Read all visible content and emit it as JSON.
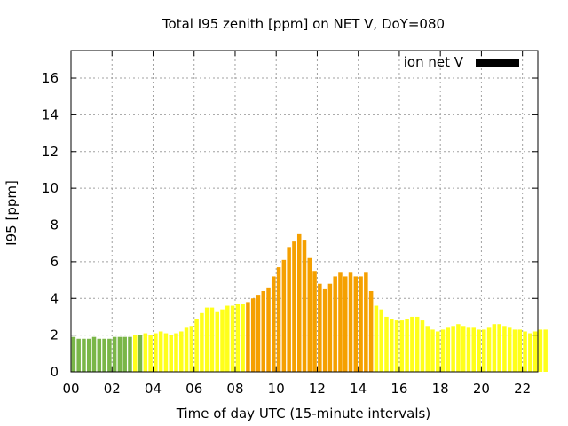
{
  "chart_data": {
    "type": "bar",
    "title": "Total I95 zenith [ppm] on NET V, DoY=080",
    "xlabel": "Time of day UTC (15-minute intervals)",
    "ylabel": "I95 [ppm]",
    "legend": {
      "label": "ion net V",
      "color": "#000000",
      "placement": "top-right"
    },
    "grid": true,
    "xlim": [
      0,
      22.75
    ],
    "ylim": [
      0,
      17.5
    ],
    "x_ticks": [
      {
        "value": 0,
        "label": "00"
      },
      {
        "value": 2,
        "label": "02"
      },
      {
        "value": 4,
        "label": "04"
      },
      {
        "value": 6,
        "label": "06"
      },
      {
        "value": 8,
        "label": "08"
      },
      {
        "value": 10,
        "label": "10"
      },
      {
        "value": 12,
        "label": "12"
      },
      {
        "value": 14,
        "label": "14"
      },
      {
        "value": 16,
        "label": "16"
      },
      {
        "value": 18,
        "label": "18"
      },
      {
        "value": 20,
        "label": "20"
      },
      {
        "value": 22,
        "label": "22"
      }
    ],
    "y_ticks": [
      {
        "value": 0,
        "label": "0"
      },
      {
        "value": 2,
        "label": "2"
      },
      {
        "value": 4,
        "label": "4"
      },
      {
        "value": 6,
        "label": "6"
      },
      {
        "value": 8,
        "label": "8"
      },
      {
        "value": 10,
        "label": "10"
      },
      {
        "value": 12,
        "label": "12"
      },
      {
        "value": 14,
        "label": "14"
      },
      {
        "value": 16,
        "label": "16"
      }
    ],
    "interval_hours": 0.25,
    "bar_color_scale": {
      "low": "#7ab648",
      "moderate": "#ffff1a",
      "elevated": "#f5a000"
    },
    "values": [
      1.9,
      1.8,
      1.8,
      1.8,
      1.9,
      1.8,
      1.8,
      1.8,
      1.9,
      1.9,
      1.9,
      1.9,
      2.0,
      2.0,
      2.1,
      2.0,
      2.1,
      2.2,
      2.1,
      2.0,
      2.1,
      2.2,
      2.4,
      2.5,
      2.9,
      3.2,
      3.5,
      3.5,
      3.3,
      3.4,
      3.6,
      3.6,
      3.7,
      3.7,
      3.8,
      4.0,
      4.2,
      4.4,
      4.6,
      5.2,
      5.7,
      6.1,
      6.8,
      7.1,
      7.5,
      7.2,
      6.2,
      5.5,
      4.8,
      4.5,
      4.8,
      5.2,
      5.4,
      5.2,
      5.4,
      5.2,
      5.2,
      5.4,
      4.4,
      3.6,
      3.4,
      3.0,
      2.9,
      2.8,
      2.8,
      2.9,
      3.0,
      3.0,
      2.8,
      2.5,
      2.3,
      2.2,
      2.3,
      2.4,
      2.5,
      2.6,
      2.5,
      2.4,
      2.4,
      2.3,
      2.3,
      2.4,
      2.6,
      2.6,
      2.5,
      2.4,
      2.3,
      2.3,
      2.2,
      2.1,
      2.2,
      2.3,
      2.3
    ],
    "categories": [
      "low",
      "low",
      "low",
      "low",
      "low",
      "low",
      "low",
      "low",
      "low",
      "low",
      "low",
      "low",
      "moderate",
      "low",
      "moderate",
      "moderate",
      "moderate",
      "moderate",
      "moderate",
      "moderate",
      "moderate",
      "moderate",
      "moderate",
      "moderate",
      "moderate",
      "moderate",
      "moderate",
      "moderate",
      "moderate",
      "moderate",
      "moderate",
      "moderate",
      "moderate",
      "moderate",
      "elevated",
      "elevated",
      "elevated",
      "elevated",
      "elevated",
      "elevated",
      "elevated",
      "elevated",
      "elevated",
      "elevated",
      "elevated",
      "elevated",
      "elevated",
      "elevated",
      "elevated",
      "elevated",
      "elevated",
      "elevated",
      "elevated",
      "elevated",
      "elevated",
      "elevated",
      "elevated",
      "elevated",
      "elevated",
      "moderate",
      "moderate",
      "moderate",
      "moderate",
      "moderate",
      "moderate",
      "moderate",
      "moderate",
      "moderate",
      "moderate",
      "moderate",
      "moderate",
      "moderate",
      "moderate",
      "moderate",
      "moderate",
      "moderate",
      "moderate",
      "moderate",
      "moderate",
      "moderate",
      "moderate",
      "moderate",
      "moderate",
      "moderate",
      "moderate",
      "moderate",
      "moderate",
      "moderate",
      "moderate",
      "moderate",
      "moderate",
      "moderate",
      "moderate"
    ]
  }
}
